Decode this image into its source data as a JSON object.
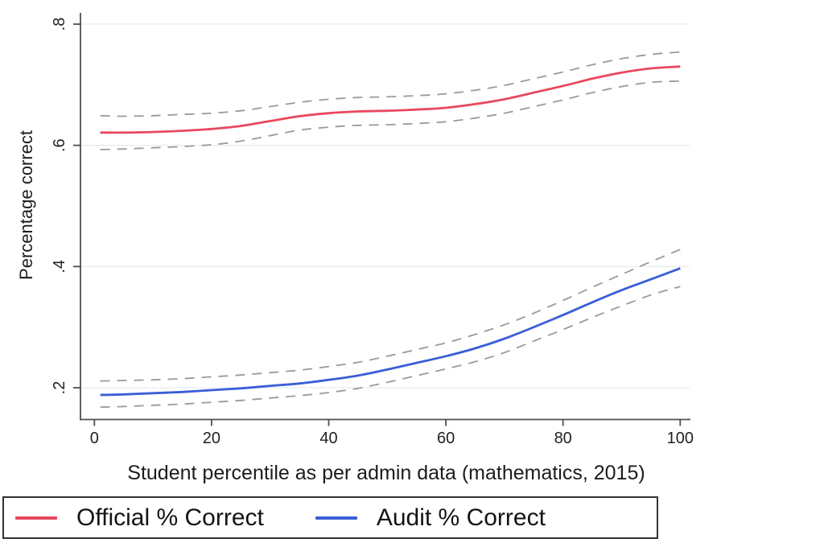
{
  "chart_data": {
    "type": "line",
    "title": "",
    "xlabel": "Student percentile as per admin data (mathematics, 2015)",
    "ylabel": "Percentage correct",
    "xlim": [
      0,
      100
    ],
    "ylim": [
      0.15,
      0.82
    ],
    "grid": "horizontal",
    "x_ticks": [
      {
        "v": 0,
        "label": "0"
      },
      {
        "v": 20,
        "label": "20"
      },
      {
        "v": 40,
        "label": "40"
      },
      {
        "v": 60,
        "label": "60"
      },
      {
        "v": 80,
        "label": "80"
      },
      {
        "v": 100,
        "label": "100"
      }
    ],
    "y_ticks": [
      {
        "v": 0.2,
        "label": ".2"
      },
      {
        "v": 0.4,
        "label": ".4"
      },
      {
        "v": 0.6,
        "label": ".6"
      },
      {
        "v": 0.8,
        "label": ".8"
      }
    ],
    "x": [
      1,
      5,
      10,
      15,
      20,
      25,
      30,
      35,
      40,
      45,
      50,
      55,
      60,
      65,
      70,
      75,
      80,
      85,
      90,
      95,
      100
    ],
    "series": [
      {
        "id": "official",
        "name": "Official % Correct",
        "style": "solid",
        "color": "#e8485e",
        "values": [
          0.621,
          0.621,
          0.622,
          0.624,
          0.627,
          0.632,
          0.64,
          0.648,
          0.653,
          0.656,
          0.657,
          0.659,
          0.662,
          0.668,
          0.676,
          0.687,
          0.698,
          0.71,
          0.72,
          0.727,
          0.73
        ]
      },
      {
        "id": "official-ci-upper",
        "name": "Official 95% CI upper",
        "style": "dashed",
        "color": "#9a9a9a",
        "values": [
          0.649,
          0.648,
          0.649,
          0.651,
          0.653,
          0.657,
          0.664,
          0.671,
          0.676,
          0.679,
          0.68,
          0.682,
          0.685,
          0.691,
          0.699,
          0.71,
          0.721,
          0.733,
          0.743,
          0.75,
          0.754
        ]
      },
      {
        "id": "official-ci-lower",
        "name": "Official 95% CI lower",
        "style": "dashed",
        "color": "#9a9a9a",
        "values": [
          0.593,
          0.594,
          0.596,
          0.598,
          0.601,
          0.607,
          0.616,
          0.625,
          0.63,
          0.633,
          0.634,
          0.636,
          0.639,
          0.645,
          0.653,
          0.664,
          0.675,
          0.687,
          0.697,
          0.704,
          0.706
        ]
      },
      {
        "id": "audit",
        "name": "Audit % Correct",
        "style": "solid",
        "color": "#3a5ed6",
        "values": [
          0.188,
          0.189,
          0.191,
          0.193,
          0.196,
          0.199,
          0.203,
          0.207,
          0.213,
          0.22,
          0.23,
          0.241,
          0.252,
          0.265,
          0.281,
          0.3,
          0.32,
          0.341,
          0.361,
          0.379,
          0.397
        ]
      },
      {
        "id": "audit-ci-upper",
        "name": "Audit 95% CI upper",
        "style": "dashed",
        "color": "#9a9a9a",
        "values": [
          0.211,
          0.212,
          0.213,
          0.215,
          0.218,
          0.221,
          0.225,
          0.229,
          0.235,
          0.242,
          0.252,
          0.263,
          0.274,
          0.288,
          0.304,
          0.323,
          0.344,
          0.366,
          0.387,
          0.408,
          0.428
        ]
      },
      {
        "id": "audit-ci-lower",
        "name": "Audit 95% CI lower",
        "style": "dashed",
        "color": "#9a9a9a",
        "values": [
          0.168,
          0.169,
          0.171,
          0.173,
          0.176,
          0.179,
          0.183,
          0.187,
          0.192,
          0.199,
          0.209,
          0.22,
          0.231,
          0.243,
          0.258,
          0.277,
          0.296,
          0.316,
          0.335,
          0.353,
          0.367
        ]
      }
    ],
    "legend": {
      "position": "bottom",
      "items": [
        {
          "id": "official",
          "label": "Official % Correct",
          "color": "#e8485e"
        },
        {
          "id": "audit",
          "label": "Audit % Correct",
          "color": "#3a5ed6"
        }
      ]
    },
    "colors": {
      "official": "#e8485e",
      "audit": "#3a5ed6",
      "ci": "#9a9a9a",
      "grid": "#e4edf2",
      "axis": "#4f4f4f",
      "text": "#1c1c1c"
    }
  }
}
